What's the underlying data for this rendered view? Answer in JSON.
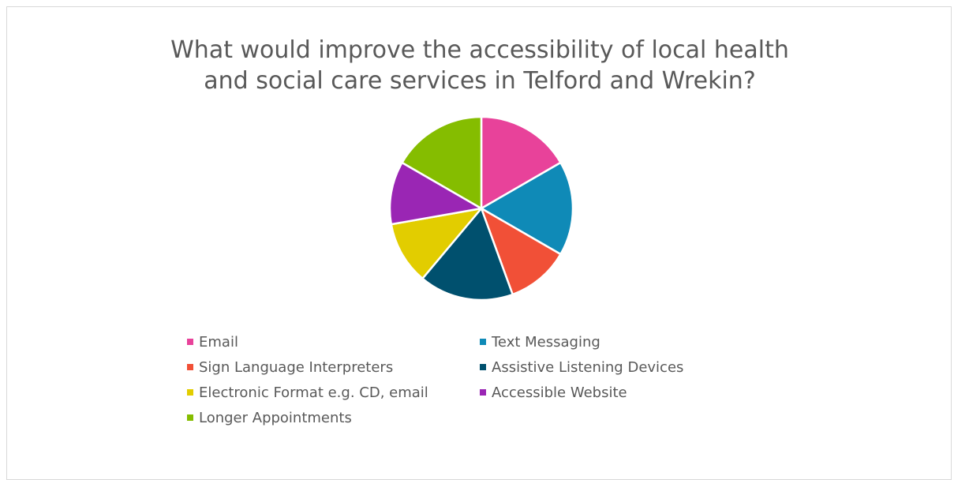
{
  "chart_data": {
    "type": "pie",
    "title_lines": [
      "What would improve the accessibility of local health",
      "and social care services in Telford and Wrekin?"
    ],
    "categories": [
      "Email",
      "Text Messaging",
      "Sign Language Interpreters",
      "Assistive Listening Devices",
      "Electronic Format e.g. CD, email",
      "Accessible Website",
      "Longer Appointments"
    ],
    "values": [
      3,
      3,
      2,
      3,
      2,
      2,
      3
    ],
    "colors": [
      "#e8429a",
      "#0f8ab7",
      "#f15037",
      "#00506e",
      "#e2cd00",
      "#9a26b4",
      "#85bd00"
    ],
    "legend_position": "bottom"
  }
}
